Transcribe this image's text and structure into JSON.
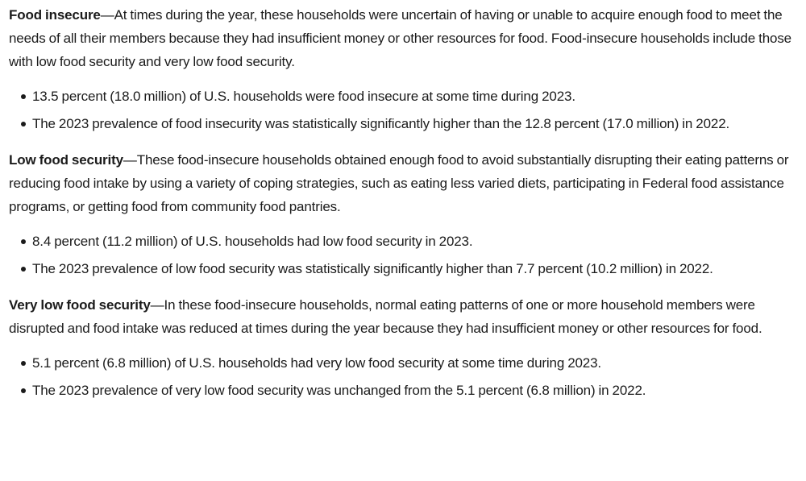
{
  "sections": [
    {
      "term": "Food insecure",
      "definition": "—At times during the year, these households were uncertain of having or unable to acquire enough food to meet the needs of all their members because they had insufficient money or other resources for food. Food-insecure households include those with low food security and very low food security.",
      "bullets": [
        "13.5 percent (18.0 million) of U.S. households were food insecure at some time during 2023.",
        "The 2023 prevalence of food insecurity was statistically significantly higher than the 12.8 percent (17.0 million) in 2022."
      ]
    },
    {
      "term": "Low food security",
      "definition": "—These food-insecure households obtained enough food to avoid substantially disrupting their eating patterns or reducing food intake by using a variety of coping strategies, such as eating less varied diets, participating in Federal food assistance programs, or getting food from community food pantries.",
      "bullets": [
        "8.4 percent (11.2 million) of U.S. households had low food security in 2023.",
        "The 2023 prevalence of low food security was statistically significantly higher than 7.7 percent (10.2 million) in 2022."
      ]
    },
    {
      "term": "Very low food security",
      "definition": "—In these food-insecure households, normal eating patterns of one or more household members were disrupted and food intake was reduced at times during the year because they had insufficient money or other resources for food.",
      "bullets": [
        "5.1 percent (6.8 million) of U.S. households had very low food security at some time during 2023.",
        "The 2023 prevalence of very low food security was unchanged from the 5.1 percent (6.8 million) in 2022."
      ]
    }
  ],
  "colors": {
    "text": "#1b1b1b",
    "background": "#ffffff"
  }
}
